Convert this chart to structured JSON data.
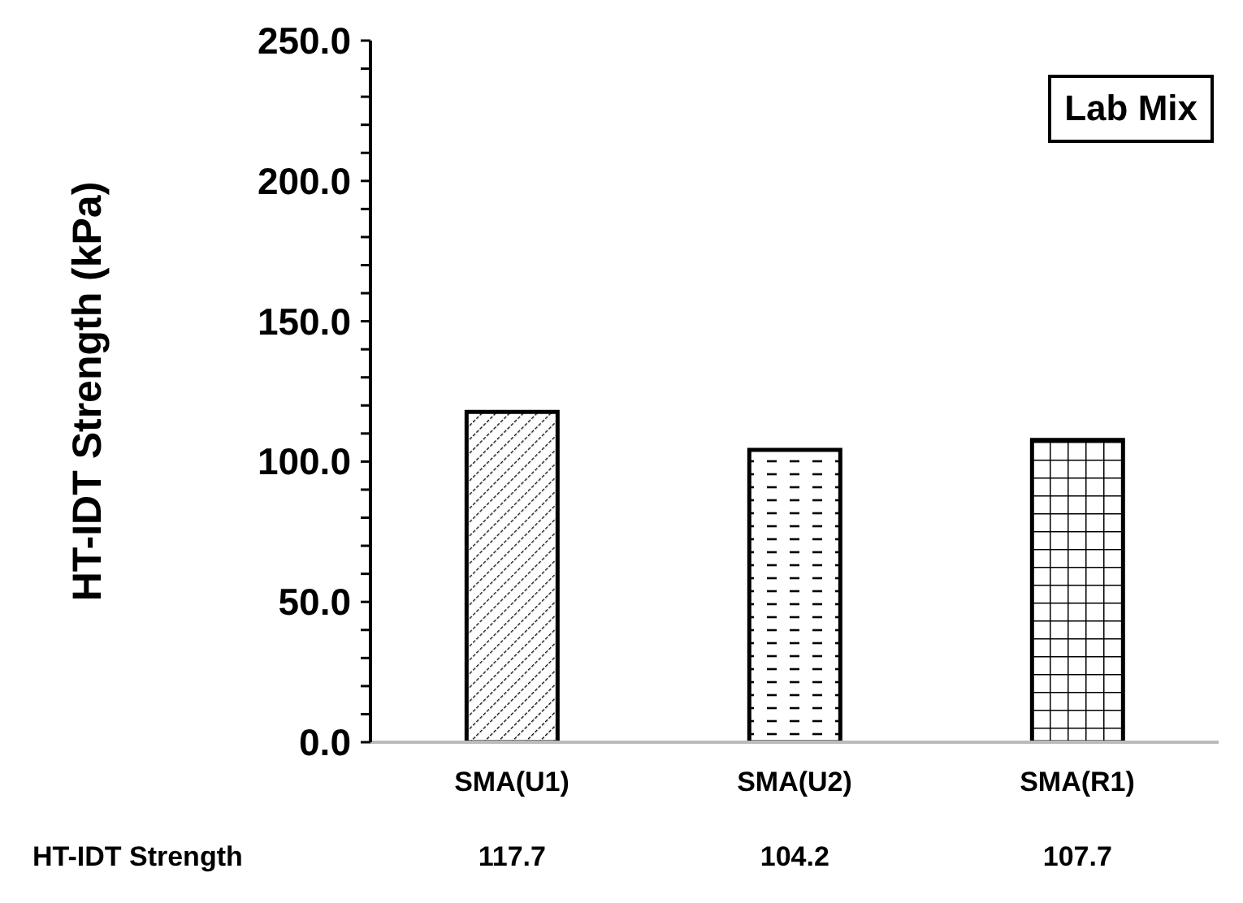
{
  "chart_data": {
    "type": "bar",
    "ylabel": "HT-IDT Strength (kPa)",
    "categories": [
      "SMA(U1)",
      "SMA(U2)",
      "SMA(R1)"
    ],
    "series": [
      {
        "name": "HT-IDT Strength",
        "color": "#000000",
        "values": [
          117.7,
          104.2,
          107.7
        ]
      }
    ],
    "data_labels": true,
    "ylim": [
      0,
      250
    ],
    "yticks": [
      {
        "value": 0,
        "label": "0.0"
      },
      {
        "value": 10,
        "label": null
      },
      {
        "value": 20,
        "label": null
      },
      {
        "value": 30,
        "label": null
      },
      {
        "value": 40,
        "label": null
      },
      {
        "value": 50,
        "label": "50.0"
      },
      {
        "value": 60,
        "label": null
      },
      {
        "value": 70,
        "label": null
      },
      {
        "value": 80,
        "label": null
      },
      {
        "value": 90,
        "label": null
      },
      {
        "value": 100,
        "label": "100.0"
      },
      {
        "value": 110,
        "label": null
      },
      {
        "value": 120,
        "label": null
      },
      {
        "value": 130,
        "label": null
      },
      {
        "value": 140,
        "label": null
      },
      {
        "value": 150,
        "label": "150.0"
      },
      {
        "value": 160,
        "label": null
      },
      {
        "value": 170,
        "label": null
      },
      {
        "value": 180,
        "label": null
      },
      {
        "value": 190,
        "label": null
      },
      {
        "value": 200,
        "label": "200.0"
      },
      {
        "value": 210,
        "label": null
      },
      {
        "value": 220,
        "label": null
      },
      {
        "value": 230,
        "label": null
      },
      {
        "value": 240,
        "label": null
      },
      {
        "value": 250,
        "label": "250.0"
      }
    ],
    "annotations": [
      "Lab Mix"
    ],
    "grid": false
  }
}
